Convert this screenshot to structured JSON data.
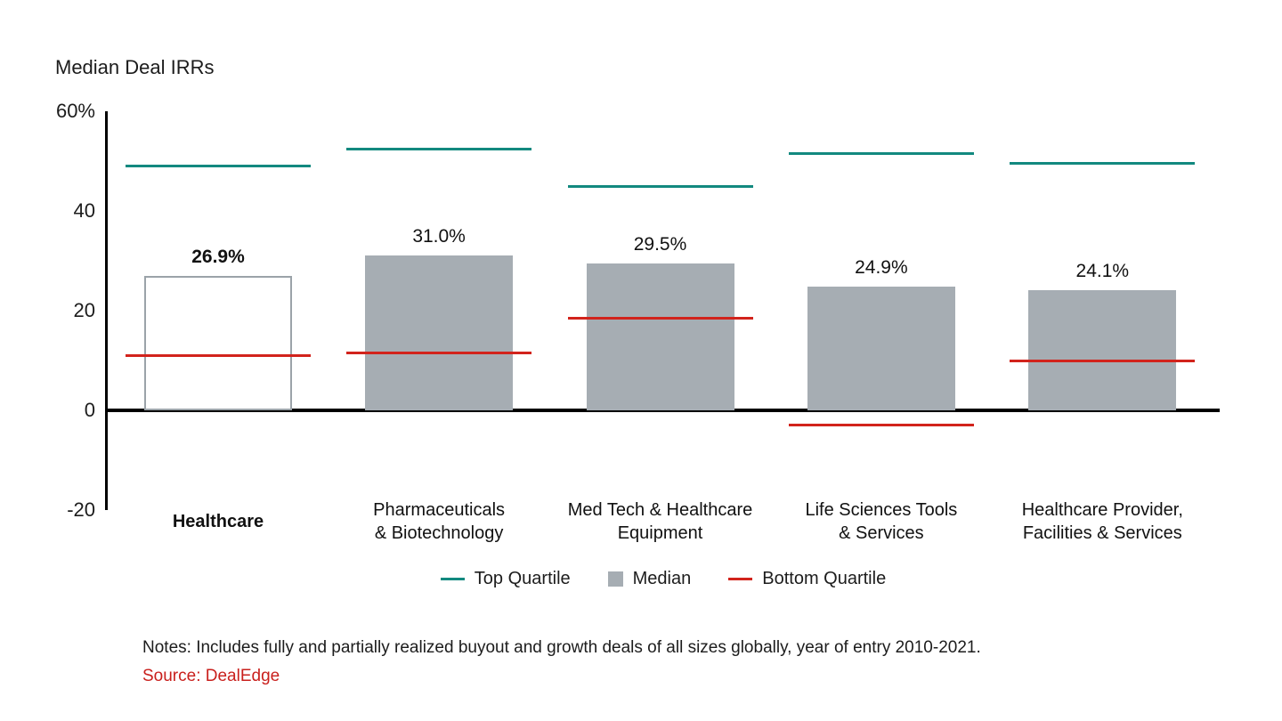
{
  "title": "Median Deal IRRs",
  "notes": "Notes: Includes fully and partially realized buyout and growth deals of all sizes globally, year of entry 2010-2021.",
  "source": "Source: DealEdge",
  "colors": {
    "top_quartile": "#12897f",
    "median_fill": "#a6adb3",
    "bottom_quartile": "#d2231c",
    "highlight_border": "#9ba3a9",
    "axis": "#000000",
    "text": "#1c1c1c",
    "source_red": "#c9201d"
  },
  "chart_data": {
    "type": "bar",
    "title": "Median Deal IRRs",
    "ylabel": "Median Deal IRRs (%)",
    "xlabel": "",
    "ylim": [
      -20,
      60
    ],
    "grid": false,
    "legend_position": "bottom",
    "categories": [
      "Healthcare",
      "Pharmaceuticals & Biotechnology",
      "Med Tech & Healthcare Equipment",
      "Life Sciences Tools & Services",
      "Healthcare Provider, Facilities & Services"
    ],
    "category_lines": [
      [
        "Healthcare"
      ],
      [
        "Pharmaceuticals",
        "& Biotechnology"
      ],
      [
        "Med Tech & Healthcare",
        "Equipment"
      ],
      [
        "Life Sciences Tools",
        "& Services"
      ],
      [
        "Healthcare Provider,",
        "Facilities & Services"
      ]
    ],
    "highlight_index": 0,
    "series": [
      {
        "name": "Top Quartile",
        "style": "tick-line",
        "color_key": "top_quartile",
        "values": [
          49,
          52.5,
          45,
          51.5,
          49.5
        ]
      },
      {
        "name": "Median",
        "style": "bar",
        "color_key": "median_fill",
        "values": [
          26.9,
          31.0,
          29.5,
          24.9,
          24.1
        ],
        "labels": [
          "26.9%",
          "31.0%",
          "29.5%",
          "24.9%",
          "24.1%"
        ]
      },
      {
        "name": "Bottom Quartile",
        "style": "tick-line",
        "color_key": "bottom_quartile",
        "values": [
          11,
          11.5,
          18.5,
          -3,
          10
        ]
      }
    ],
    "yticks": [
      {
        "value": 60,
        "label": "60%"
      },
      {
        "value": 40,
        "label": "40"
      },
      {
        "value": 20,
        "label": "20"
      },
      {
        "value": 0,
        "label": "0"
      },
      {
        "value": -20,
        "label": "-20"
      }
    ],
    "legend": [
      {
        "label": "Top Quartile",
        "swatch": "line",
        "color_key": "top_quartile"
      },
      {
        "label": "Median",
        "swatch": "square",
        "color_key": "median_fill"
      },
      {
        "label": "Bottom Quartile",
        "swatch": "line",
        "color_key": "bottom_quartile"
      }
    ]
  }
}
